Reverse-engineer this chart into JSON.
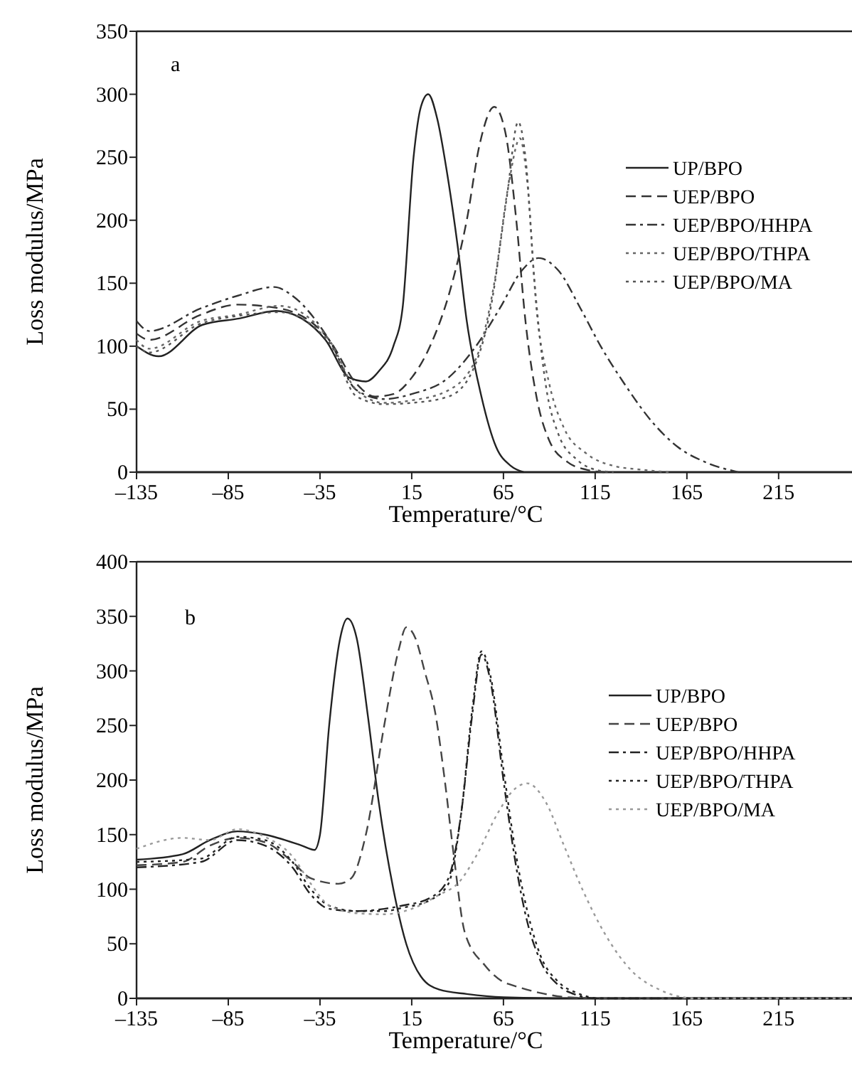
{
  "chart_data": [
    {
      "type": "line",
      "xlabel": "Temperature/°C",
      "ylabel": "Loss modulus/MPa",
      "annotations": [
        "a"
      ],
      "legend": "top right",
      "xlim": [
        -135,
        255
      ],
      "xticks": [
        {
          "value": -135,
          "label": "–135"
        },
        {
          "value": -85,
          "label": "–85"
        },
        {
          "value": -35,
          "label": "–35"
        },
        15,
        65,
        115,
        165,
        215
      ],
      "ylim": [
        0,
        350
      ],
      "yticks": [
        0,
        50,
        100,
        150,
        200,
        250,
        300,
        350
      ],
      "series": [
        {
          "name": "UP/BPO",
          "color": "#222222",
          "line_style": "solid",
          "x": [
            -135,
            -123,
            -99,
            -79,
            -59,
            -45,
            -32,
            -19,
            -10,
            -3,
            5,
            10,
            16,
            20,
            24,
            29,
            34,
            40,
            45,
            53,
            61,
            69,
            76
          ],
          "values": [
            100,
            92,
            117,
            122,
            128,
            122,
            105,
            75,
            72,
            80,
            100,
            130,
            250,
            290,
            300,
            280,
            240,
            180,
            120,
            60,
            20,
            5,
            0
          ]
        },
        {
          "name": "UEP/BPO",
          "color": "#333333",
          "line_style": "dashed",
          "x": [
            -135,
            -128,
            -100,
            -80,
            -57,
            -30,
            -15,
            -5,
            5,
            15,
            25,
            37,
            45,
            52,
            60,
            66,
            72,
            77,
            83,
            90,
            100,
            110,
            120
          ],
          "values": [
            110,
            105,
            125,
            133,
            130,
            105,
            70,
            60,
            62,
            75,
            100,
            150,
            200,
            260,
            290,
            270,
            200,
            120,
            60,
            25,
            8,
            2,
            0
          ]
        },
        {
          "name": "UEP/BPO/HHPA",
          "color": "#333333",
          "line_style": "dashdot",
          "x": [
            -135,
            -128,
            -100,
            -80,
            -60,
            -50,
            -30,
            -15,
            0,
            15,
            35,
            50,
            63,
            75,
            84,
            95,
            107,
            118,
            131,
            146,
            160,
            175,
            193
          ],
          "values": [
            120,
            112,
            130,
            140,
            147,
            140,
            105,
            65,
            58,
            62,
            75,
            100,
            130,
            160,
            170,
            160,
            130,
            100,
            70,
            40,
            20,
            8,
            0
          ]
        },
        {
          "name": "UEP/BPO/THPA",
          "color": "#666666",
          "line_style": "dotted",
          "x": [
            -135,
            -128,
            -100,
            -80,
            -57,
            -30,
            -15,
            0,
            15,
            35,
            50,
            60,
            68,
            74,
            78,
            83,
            90,
            98,
            110,
            125,
            140,
            155
          ],
          "values": [
            105,
            98,
            120,
            125,
            132,
            105,
            65,
            55,
            57,
            65,
            90,
            150,
            230,
            265,
            230,
            130,
            70,
            35,
            15,
            5,
            2,
            0
          ]
        },
        {
          "name": "UEP/BPO/MA",
          "color": "#555555",
          "line_style": "dotted",
          "x": [
            -135,
            -128,
            -100,
            -80,
            -57,
            -30,
            -15,
            0,
            15,
            35,
            48,
            58,
            67,
            73,
            77,
            82,
            88,
            95,
            105,
            115,
            125
          ],
          "values": [
            100,
            95,
            118,
            124,
            127,
            103,
            60,
            54,
            55,
            60,
            80,
            130,
            220,
            278,
            250,
            150,
            70,
            30,
            10,
            2,
            0
          ]
        }
      ]
    },
    {
      "type": "line",
      "xlabel": "Temperature/°C",
      "ylabel": "Loss modulus/MPa",
      "annotations": [
        "b"
      ],
      "legend": "top right",
      "xlim": [
        -135,
        255
      ],
      "xticks": [
        {
          "value": -135,
          "label": "–135"
        },
        {
          "value": -85,
          "label": "–85"
        },
        {
          "value": -35,
          "label": "–35"
        },
        15,
        65,
        115,
        165,
        215
      ],
      "ylim": [
        0,
        400
      ],
      "yticks": [
        0,
        50,
        100,
        150,
        200,
        250,
        300,
        350,
        400
      ],
      "series": [
        {
          "name": "UP/BPO",
          "color": "#222222",
          "line_style": "solid",
          "x": [
            -135,
            -110,
            -95,
            -80,
            -65,
            -45,
            -38,
            -35,
            -30,
            -24,
            -20,
            -15,
            -9,
            -3,
            5,
            12,
            20,
            30,
            45,
            65,
            100,
            255
          ],
          "values": [
            127,
            132,
            145,
            153,
            150,
            140,
            136,
            150,
            250,
            330,
            348,
            330,
            260,
            180,
            100,
            50,
            20,
            8,
            4,
            1,
            0,
            0
          ]
        },
        {
          "name": "UEP/BPO",
          "color": "#444444",
          "line_style": "dashed",
          "x": [
            -135,
            -110,
            -95,
            -80,
            -65,
            -50,
            -40,
            -25,
            -18,
            -10,
            0,
            8,
            12,
            17,
            22,
            28,
            33,
            38,
            44,
            55,
            65,
            70,
            85,
            100,
            120,
            255
          ],
          "values": [
            122,
            125,
            140,
            147,
            143,
            125,
            110,
            105,
            110,
            150,
            250,
            320,
            340,
            330,
            300,
            260,
            200,
            130,
            60,
            30,
            15,
            12,
            5,
            1,
            0,
            0
          ]
        },
        {
          "name": "UEP/BPO/HHPA",
          "color": "#222222",
          "line_style": "dashdot",
          "x": [
            -135,
            -100,
            -80,
            -65,
            -50,
            -40,
            -30,
            -15,
            0,
            10,
            25,
            35,
            42,
            48,
            53,
            58,
            65,
            72,
            78,
            85,
            95,
            105,
            115,
            255
          ],
          "values": [
            120,
            125,
            145,
            140,
            120,
            95,
            82,
            80,
            82,
            85,
            92,
            110,
            170,
            260,
            315,
            290,
            200,
            120,
            70,
            35,
            12,
            3,
            0,
            0
          ]
        },
        {
          "name": "UEP/BPO/THPA",
          "color": "#222222",
          "line_style": "dotted",
          "x": [
            -135,
            -100,
            -80,
            -65,
            -50,
            -40,
            -30,
            -15,
            0,
            10,
            25,
            35,
            42,
            48,
            53,
            58,
            65,
            72,
            78,
            85,
            95,
            105,
            118,
            255
          ],
          "values": [
            125,
            128,
            148,
            145,
            125,
            100,
            85,
            80,
            80,
            83,
            90,
            105,
            170,
            265,
            318,
            295,
            210,
            130,
            80,
            40,
            15,
            5,
            0,
            0
          ]
        },
        {
          "name": "UEP/BPO/MA",
          "color": "#999999",
          "line_style": "dotted",
          "x": [
            -135,
            -110,
            -95,
            -80,
            -65,
            -50,
            -40,
            -30,
            -15,
            0,
            15,
            30,
            40,
            50,
            62,
            70,
            78,
            88,
            98,
            108,
            120,
            135,
            150,
            160,
            170,
            255
          ],
          "values": [
            137,
            147,
            145,
            155,
            148,
            130,
            105,
            85,
            78,
            77,
            82,
            95,
            105,
            130,
            170,
            190,
            197,
            180,
            140,
            100,
            60,
            25,
            8,
            2,
            0,
            0
          ]
        }
      ]
    }
  ]
}
